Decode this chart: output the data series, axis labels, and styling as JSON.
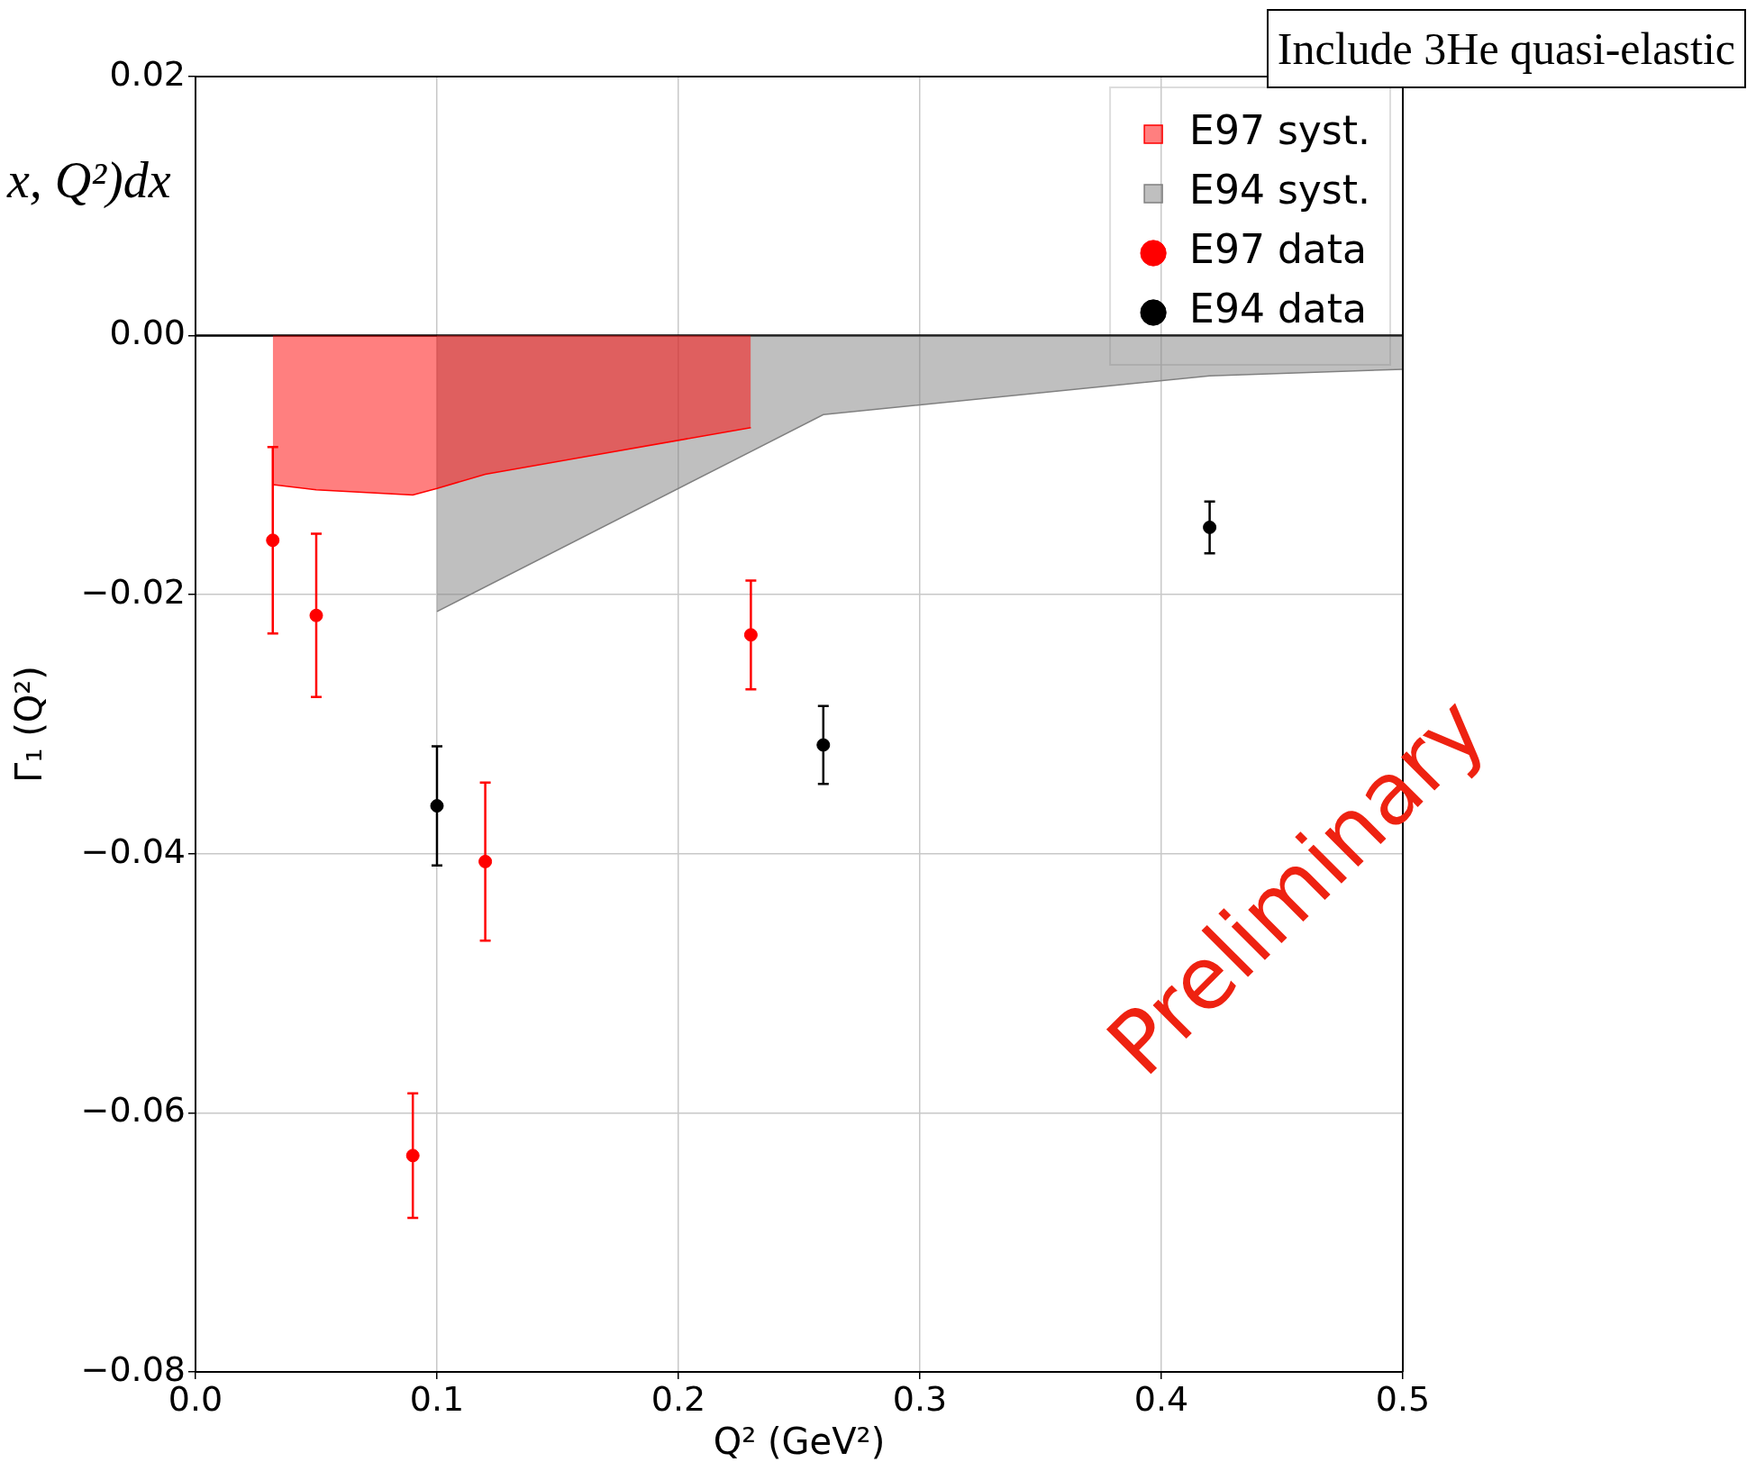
{
  "chart_data": {
    "type": "scatter",
    "xlabel": "Q² (GeV²)",
    "ylabel": "Γ₁ (Q²)",
    "xlim": [
      0,
      0.5
    ],
    "ylim": [
      -0.08,
      0.02
    ],
    "xticks": [
      {
        "value": 0,
        "label": "0.0"
      },
      {
        "value": 0.1,
        "label": "0.1"
      },
      {
        "value": 0.2,
        "label": "0.2"
      },
      {
        "value": 0.3,
        "label": "0.3"
      },
      {
        "value": 0.4,
        "label": "0.4"
      },
      {
        "value": 0.5,
        "label": "0.5"
      }
    ],
    "yticks": [
      {
        "value": -0.08,
        "label": "−0.08"
      },
      {
        "value": -0.06,
        "label": "−0.06"
      },
      {
        "value": -0.04,
        "label": "−0.04"
      },
      {
        "value": -0.02,
        "label": "−0.02"
      },
      {
        "value": 0,
        "label": "0.00"
      },
      {
        "value": 0.02,
        "label": "0.02"
      }
    ],
    "grid": true,
    "legend": "top right",
    "ref_lines": [
      {
        "axis": "y",
        "value": 0,
        "color": "#000000"
      }
    ],
    "annotations": [
      "Include 3He quasi-elastic",
      "x, Q²)dx",
      "Preliminary"
    ],
    "series": [
      {
        "name": "E97 syst.",
        "type": "area",
        "color": "#ff0000",
        "x": [
          0.032,
          0.05,
          0.09,
          0.1,
          0.12,
          0.23
        ],
        "values": [
          -0.0115,
          -0.0119,
          -0.0123,
          -0.0118,
          -0.0107,
          -0.0071
        ]
      },
      {
        "name": "E94 syst.",
        "type": "area",
        "color": "#808080",
        "x": [
          0.1,
          0.26,
          0.42,
          0.5
        ],
        "values": [
          -0.0213,
          -0.0061,
          -0.0031,
          -0.0026
        ]
      },
      {
        "name": "E97 data",
        "type": "scatter",
        "marker": "circle",
        "color": "#ff0000",
        "x": [
          0.032,
          0.05,
          0.09,
          0.12,
          0.23
        ],
        "values": [
          -0.0158,
          -0.0216,
          -0.0633,
          -0.0406,
          -0.0231
        ],
        "errors": [
          0.0072,
          0.0063,
          0.0048,
          0.0061,
          0.0042
        ]
      },
      {
        "name": "E94 data",
        "type": "scatter",
        "marker": "circle",
        "color": "#000000",
        "x": [
          0.1,
          0.26,
          0.42
        ],
        "values": [
          -0.0363,
          -0.0316,
          -0.0148
        ],
        "errors": [
          0.0046,
          0.003,
          0.002
        ]
      }
    ]
  }
}
